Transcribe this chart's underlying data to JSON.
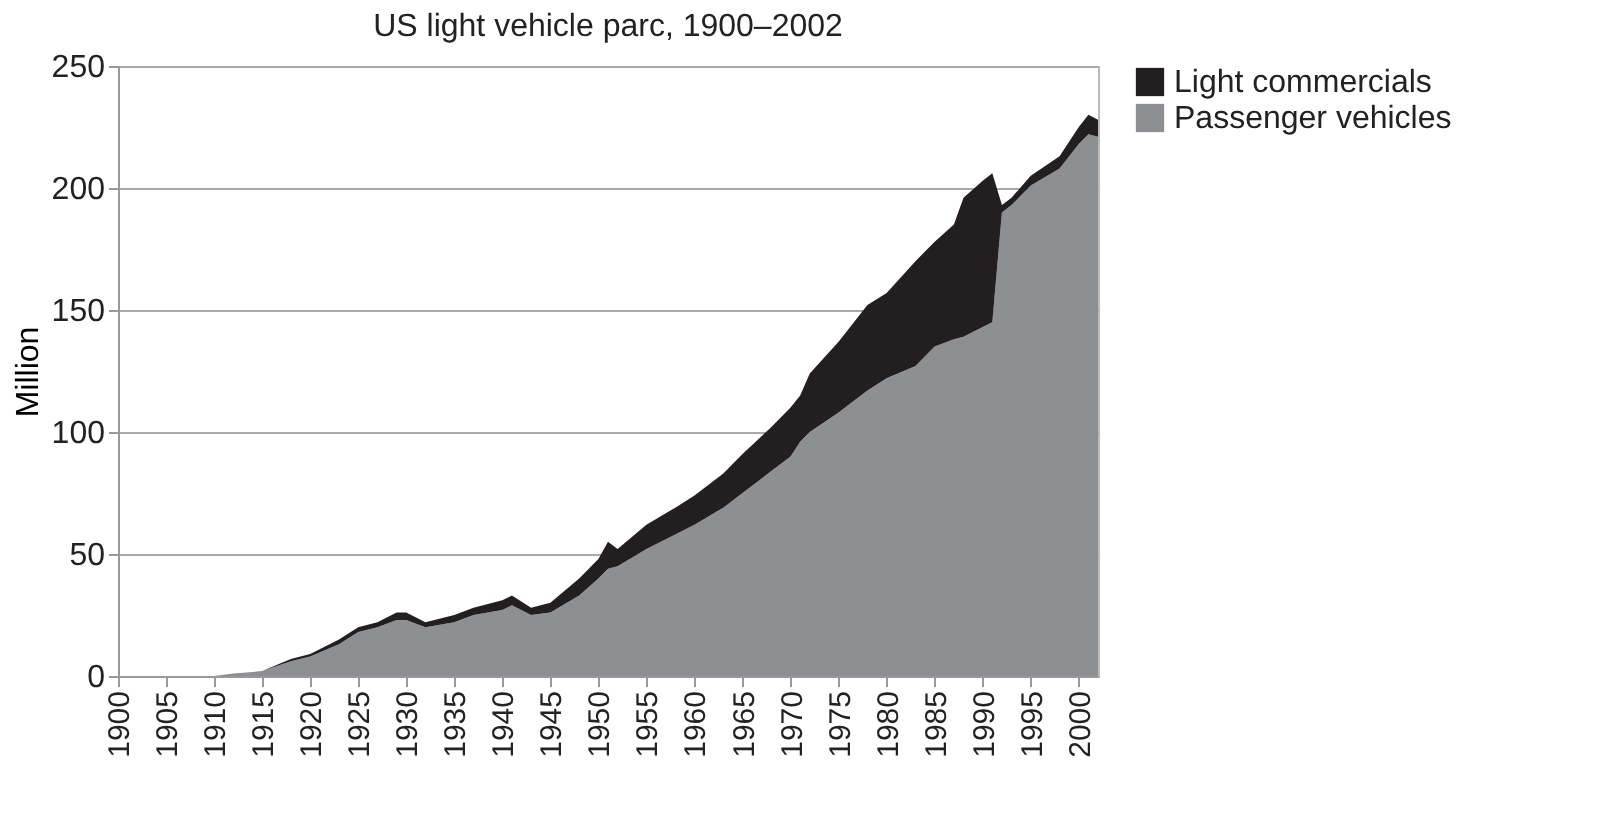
{
  "chart_data": {
    "type": "area",
    "title": "US light vehicle parc, 1900–2002",
    "ylabel": "Million",
    "stacked": true,
    "x": [
      1900,
      1905,
      1910,
      1912,
      1915,
      1918,
      1920,
      1923,
      1925,
      1927,
      1929,
      1930,
      1932,
      1935,
      1937,
      1940,
      1941,
      1943,
      1945,
      1948,
      1950,
      1951,
      1952,
      1955,
      1958,
      1960,
      1963,
      1965,
      1968,
      1970,
      1971,
      1972,
      1975,
      1978,
      1980,
      1983,
      1985,
      1987,
      1988,
      1990,
      1991,
      1992,
      1993,
      1995,
      1998,
      2000,
      2001,
      2002
    ],
    "series": [
      {
        "name": "Passenger vehicles",
        "color": "#8e8f93",
        "values": [
          0,
          0,
          0,
          1,
          2,
          6,
          8,
          13,
          18,
          20,
          23,
          23,
          20,
          22,
          25,
          27,
          29,
          25,
          26,
          33,
          40,
          44,
          45,
          52,
          58,
          62,
          69,
          75,
          84,
          90,
          96,
          100,
          108,
          117,
          122,
          127,
          135,
          138,
          139,
          143,
          145,
          190,
          193,
          201,
          208,
          218,
          222,
          221
        ]
      },
      {
        "name": "Light commercials",
        "color": "#231f20",
        "values": [
          0,
          0,
          0,
          0,
          0,
          1,
          1,
          2,
          2,
          2,
          3,
          3,
          2,
          3,
          3,
          4,
          4,
          3,
          4,
          7,
          8,
          11,
          7,
          10,
          11,
          12,
          14,
          16,
          18,
          20,
          19,
          24,
          29,
          35,
          35,
          43,
          43,
          47,
          57,
          60,
          61,
          3,
          3,
          4,
          5,
          7,
          8,
          7
        ]
      }
    ],
    "xlim": [
      1900,
      2002
    ],
    "xticks": [
      1900,
      1905,
      1910,
      1915,
      1920,
      1925,
      1930,
      1935,
      1940,
      1945,
      1950,
      1955,
      1960,
      1965,
      1970,
      1975,
      1980,
      1985,
      1990,
      1995,
      2000
    ],
    "ylim": [
      0,
      250
    ],
    "yticks": [
      0,
      50,
      100,
      150,
      200,
      250
    ],
    "grid": "y",
    "legend": "right"
  }
}
